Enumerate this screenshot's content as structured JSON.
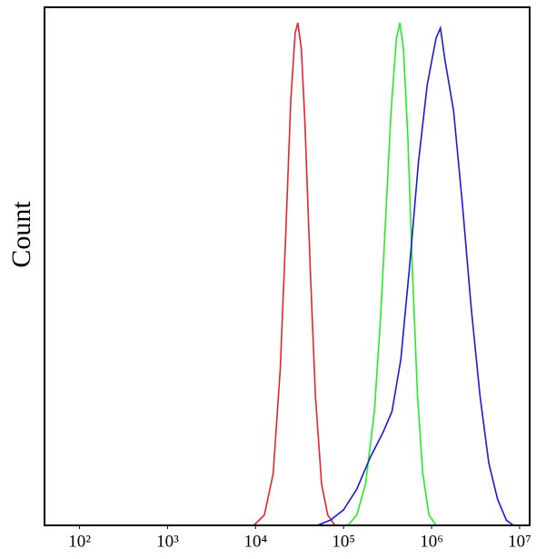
{
  "chart_data": {
    "type": "line",
    "y_label": "Count",
    "log_x": true,
    "xlim": [
      40,
      13000000
    ],
    "ylim": [
      0,
      100
    ],
    "xticks": [
      {
        "value": 100,
        "label": "10²"
      },
      {
        "value": 1000,
        "label": "10³"
      },
      {
        "value": 10000,
        "label": "10⁴"
      },
      {
        "value": 100000,
        "label": "10⁵"
      },
      {
        "value": 1000000,
        "label": "10⁶"
      },
      {
        "value": 10000000,
        "label": "10⁷"
      }
    ],
    "series": [
      {
        "color": "#e8232a",
        "x": [
          9550,
          12590,
          15850,
          19050,
          21880,
          25120,
          28180,
          30200,
          33110,
          36310,
          41690,
          47860,
          56230,
          66070,
          79430
        ],
        "values": [
          0,
          2,
          10,
          30,
          55,
          82,
          95,
          97,
          92,
          78,
          50,
          25,
          8,
          2,
          0
        ]
      },
      {
        "color": "#22ee22",
        "x": [
          112200,
          141300,
          177800,
          223900,
          263000,
          302000,
          346700,
          398100,
          436500,
          478600,
          537000,
          602600,
          691800,
          794300,
          933300,
          1122000
        ],
        "values": [
          0,
          2,
          8,
          22,
          40,
          60,
          80,
          94,
          97,
          92,
          75,
          50,
          25,
          10,
          2,
          0
        ]
      },
      {
        "color": "#1a1adc",
        "x": [
          50120,
          70790,
          100000,
          141300,
          199500,
          281800,
          354800,
          446700,
          562300,
          707900,
          891300,
          1122000,
          1259000,
          1413000,
          1778000,
          2239000,
          2818000,
          3548000,
          4467000,
          5623000,
          7079000,
          8511000
        ],
        "values": [
          0,
          1,
          3,
          7,
          13,
          18,
          22,
          32,
          50,
          70,
          85,
          94,
          96,
          90,
          80,
          62,
          42,
          25,
          12,
          5,
          1,
          0
        ]
      }
    ]
  }
}
